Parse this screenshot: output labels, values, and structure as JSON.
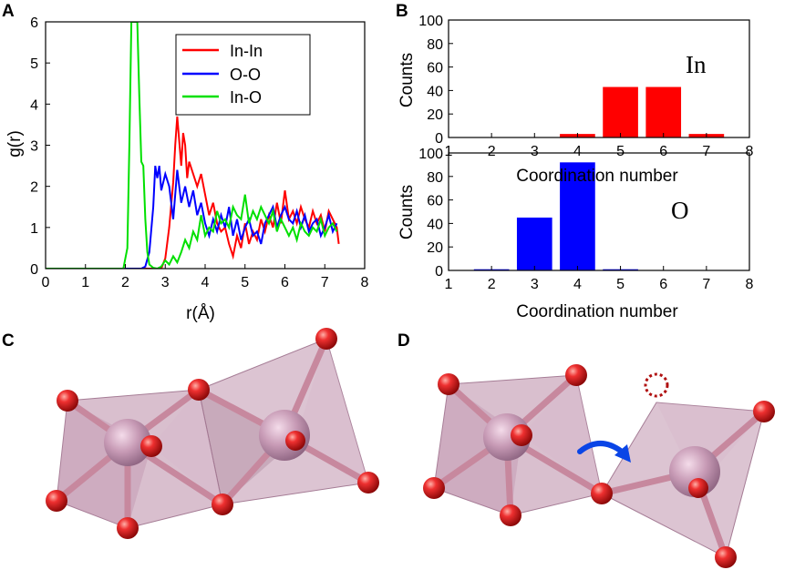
{
  "panels": {
    "A": "A",
    "B": "B",
    "C": "C",
    "D": "D"
  },
  "colors": {
    "in_in": "#ff0000",
    "o_o": "#0000ff",
    "in_o": "#00e000",
    "oxygen": "#e01818",
    "indium": "#c89ab2",
    "polyhedron": "#b98aa6",
    "arrow": "#0a45e6",
    "vacancy": "#b01010"
  },
  "chart_data": [
    {
      "panel": "A",
      "type": "line",
      "xlabel": "r(Å)",
      "ylabel": "g(r)",
      "xlim": [
        0,
        8
      ],
      "ylim": [
        0,
        6
      ],
      "xticks": [
        "0",
        "1",
        "2",
        "3",
        "4",
        "5",
        "6",
        "7",
        "8"
      ],
      "yticks": [
        "0",
        "1",
        "2",
        "3",
        "4",
        "5",
        "6"
      ],
      "legend": "top-right",
      "series": [
        {
          "name": "In-In",
          "x": [
            0,
            2.9,
            3.0,
            3.1,
            3.2,
            3.25,
            3.3,
            3.35,
            3.4,
            3.45,
            3.5,
            3.55,
            3.6,
            3.7,
            3.8,
            3.9,
            4.0,
            4.1,
            4.2,
            4.3,
            4.4,
            4.5,
            4.6,
            4.7,
            4.8,
            4.9,
            5.0,
            5.1,
            5.2,
            5.3,
            5.4,
            5.5,
            5.6,
            5.7,
            5.8,
            5.9,
            6.0,
            6.1,
            6.2,
            6.3,
            6.4,
            6.5,
            6.6,
            6.7,
            6.8,
            6.9,
            7.0,
            7.1,
            7.2,
            7.3,
            7.35
          ],
          "y": [
            0,
            0,
            0.25,
            1.0,
            2.1,
            3.0,
            3.7,
            3.1,
            2.5,
            3.3,
            3.0,
            2.2,
            2.6,
            2.3,
            2.0,
            2.3,
            1.8,
            1.3,
            1.6,
            1.1,
            0.9,
            1.0,
            0.6,
            0.3,
            0.8,
            0.5,
            1.1,
            0.6,
            0.9,
            0.7,
            1.2,
            0.9,
            1.3,
            1.0,
            1.6,
            1.1,
            1.9,
            1.2,
            1.4,
            1.1,
            1.5,
            1.2,
            1.0,
            1.4,
            1.1,
            1.3,
            0.9,
            1.4,
            1.2,
            1.0,
            0.6
          ]
        },
        {
          "name": "O-O",
          "x": [
            0,
            2.4,
            2.5,
            2.6,
            2.7,
            2.75,
            2.8,
            2.85,
            2.9,
            3.0,
            3.1,
            3.2,
            3.3,
            3.4,
            3.5,
            3.6,
            3.7,
            3.8,
            3.9,
            4.0,
            4.1,
            4.2,
            4.3,
            4.4,
            4.5,
            4.6,
            4.7,
            4.8,
            4.9,
            5.0,
            5.1,
            5.2,
            5.3,
            5.4,
            5.5,
            5.6,
            5.7,
            5.8,
            5.9,
            6.0,
            6.1,
            6.2,
            6.3,
            6.4,
            6.5,
            6.6,
            6.7,
            6.8,
            6.9,
            7.0,
            7.1,
            7.2,
            7.3
          ],
          "y": [
            0,
            0,
            0.05,
            0.4,
            1.5,
            2.5,
            2.2,
            2.5,
            1.9,
            2.3,
            2.0,
            1.2,
            2.4,
            1.6,
            2.0,
            1.5,
            1.9,
            1.3,
            1.6,
            1.1,
            0.8,
            1.2,
            0.9,
            1.3,
            1.0,
            1.5,
            0.8,
            1.2,
            0.7,
            1.0,
            1.2,
            0.8,
            0.9,
            0.6,
            1.1,
            1.3,
            1.5,
            1.0,
            1.3,
            1.5,
            1.2,
            1.1,
            1.4,
            1.0,
            1.3,
            0.9,
            1.1,
            1.2,
            0.8,
            1.0,
            1.3,
            0.9,
            1.1
          ]
        },
        {
          "name": "In-O",
          "x": [
            0,
            1.95,
            2.05,
            2.1,
            2.15,
            2.2,
            2.3,
            2.35,
            2.4,
            2.45,
            2.5,
            2.55,
            2.6,
            2.7,
            2.8,
            2.9,
            3.0,
            3.1,
            3.2,
            3.3,
            3.4,
            3.5,
            3.6,
            3.7,
            3.8,
            3.9,
            4.0,
            4.1,
            4.2,
            4.3,
            4.4,
            4.5,
            4.6,
            4.7,
            4.8,
            4.9,
            5.0,
            5.1,
            5.2,
            5.3,
            5.4,
            5.5,
            5.6,
            5.7,
            5.8,
            5.9,
            6.0,
            6.1,
            6.2,
            6.3,
            6.4,
            6.5,
            6.6,
            6.7,
            6.8,
            6.9,
            7.0,
            7.1,
            7.2,
            7.3
          ],
          "y": [
            0,
            0,
            0.5,
            3.0,
            6.0,
            6.0,
            6.0,
            4.2,
            2.6,
            2.5,
            1.2,
            0.4,
            0.1,
            0.02,
            0,
            0.05,
            0.2,
            0.1,
            0.3,
            0.15,
            0.4,
            0.7,
            0.5,
            0.9,
            0.7,
            1.3,
            0.8,
            1.0,
            0.9,
            1.4,
            1.1,
            1.2,
            1.0,
            1.5,
            1.3,
            1.2,
            1.8,
            1.1,
            1.4,
            1.2,
            1.5,
            1.3,
            1.1,
            1.4,
            0.9,
            1.2,
            1.0,
            0.8,
            1.0,
            0.7,
            1.1,
            0.9,
            0.8,
            1.0,
            0.9,
            1.2,
            0.8,
            1.0,
            1.1,
            0.9
          ]
        }
      ]
    },
    {
      "panel": "B-top",
      "type": "bar",
      "annotation": "In",
      "xlabel": "Coordination number",
      "ylabel": "Counts",
      "xlim": [
        1,
        8
      ],
      "ylim": [
        0,
        100
      ],
      "xticks": [
        "1",
        "2",
        "3",
        "4",
        "5",
        "6",
        "7",
        "8"
      ],
      "yticks": [
        "0",
        "20",
        "40",
        "60",
        "80",
        "100"
      ],
      "x": [
        4,
        5,
        6,
        7
      ],
      "values": [
        3,
        43,
        43,
        3
      ]
    },
    {
      "panel": "B-bottom",
      "type": "bar",
      "annotation": "O",
      "xlabel": "Coordination number",
      "ylabel": "Counts",
      "xlim": [
        1,
        8
      ],
      "ylim": [
        0,
        100
      ],
      "xticks": [
        "1",
        "2",
        "3",
        "4",
        "5",
        "6",
        "7",
        "8"
      ],
      "yticks": [
        "0",
        "20",
        "40",
        "60",
        "80",
        "100"
      ],
      "x": [
        2,
        3,
        4,
        5
      ],
      "values": [
        1,
        45,
        92,
        1
      ]
    }
  ]
}
